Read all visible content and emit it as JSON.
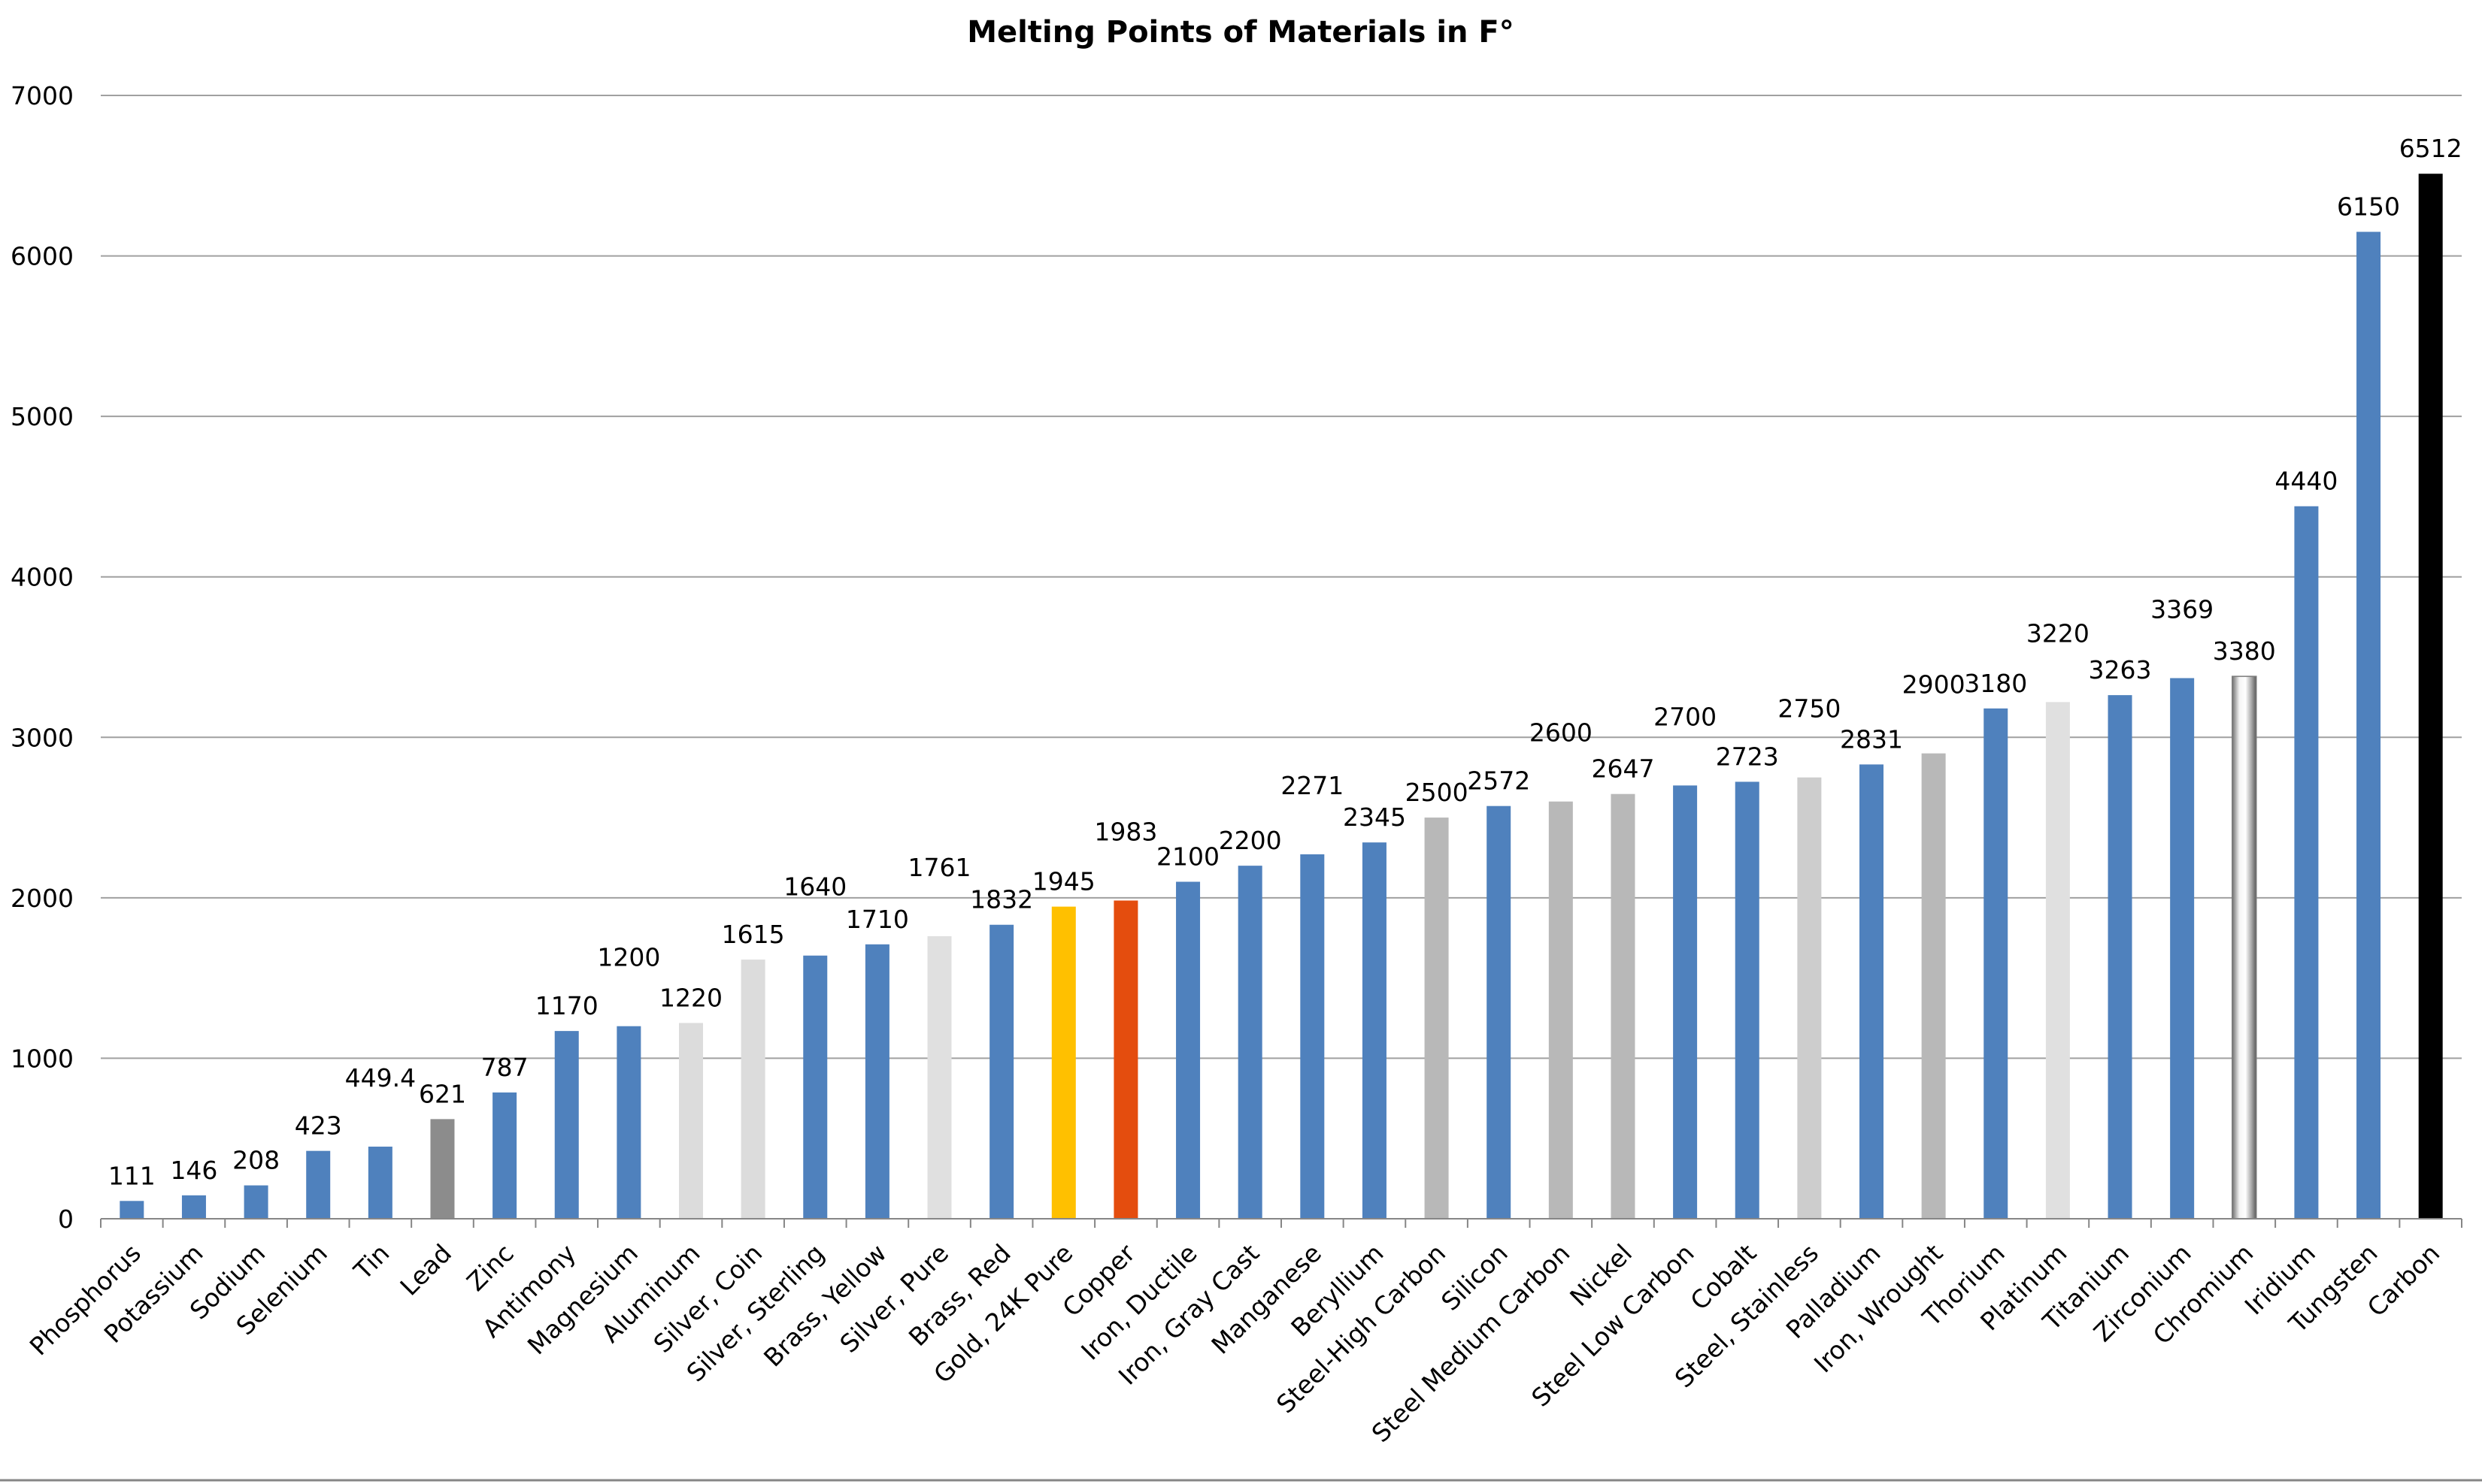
{
  "chart_data": {
    "type": "bar",
    "title": "Melting Points of Materials in F°",
    "xlabel": "",
    "ylabel": "",
    "ylim": [
      0,
      7000
    ],
    "yticks": [
      0,
      1000,
      2000,
      3000,
      4000,
      5000,
      6000,
      7000
    ],
    "grid": true,
    "legend": "none",
    "categories": [
      "Phosphorus",
      "Potassium",
      "Sodium",
      "Selenium",
      "Tin",
      "Lead",
      "Zinc",
      "Antimony",
      "Magnesium",
      "Aluminum",
      "Silver, Coin",
      "Silver, Sterling",
      "Brass, Yellow",
      "Silver, Pure",
      "Brass, Red",
      "Gold, 24K Pure",
      "Copper",
      "Iron, Ductile",
      "Iron, Gray Cast",
      "Manganese",
      "Beryllium",
      "Steel-High Carbon",
      "Silicon",
      "Steel Medium Carbon",
      "Nickel",
      "Steel Low Carbon",
      "Cobalt",
      "Steel, Stainless",
      "Palladium",
      "Iron, Wrought",
      "Thorium",
      "Platinum",
      "Titanium",
      "Zirconium",
      "Chromium",
      "Iridium",
      "Tungsten",
      "Carbon"
    ],
    "values": [
      111,
      146,
      208,
      423,
      449.4,
      621,
      787,
      1170,
      1200,
      1220,
      1615,
      1640,
      1710,
      1761,
      1832,
      1945,
      1983,
      2100,
      2200,
      2271,
      2345,
      2500,
      2572,
      2600,
      2647,
      2700,
      2723,
      2750,
      2831,
      2900,
      3180,
      3220,
      3263,
      3369,
      3380,
      4440,
      6150,
      6512
    ],
    "data_labels": [
      "111",
      "146",
      "208",
      "423",
      "449.4",
      "621",
      "787",
      "1170",
      "1200",
      "1220",
      "1615",
      "1640",
      "1710",
      "1761",
      "1832",
      "1945",
      "1983",
      "2100",
      "2200",
      "2271",
      "2345",
      "2500",
      "2572",
      "2600",
      "2647",
      "2700",
      "2723",
      "2750",
      "2831",
      "2900",
      "3180",
      "3220",
      "3263",
      "3369",
      "3380",
      "4440",
      "6150",
      "6512"
    ],
    "colors": [
      "#4f81bd",
      "#4f81bd",
      "#4f81bd",
      "#4f81bd",
      "#4f81bd",
      "#8c8c8c",
      "#4f81bd",
      "#4f81bd",
      "#4f81bd",
      "#dcdcdc",
      "#dcdcdc",
      "#4f81bd",
      "#4f81bd",
      "#e0e0e0",
      "#4f81bd",
      "#ffc000",
      "#e44d0e",
      "#4f81bd",
      "#4f81bd",
      "#4f81bd",
      "#4f81bd",
      "#b8b8b8",
      "#4f81bd",
      "#b8b8b8",
      "#b8b8b8",
      "#4f81bd",
      "#4f81bd",
      "#cdcdcd",
      "#4f81bd",
      "#b8b8b8",
      "#4f81bd",
      "#e0e0e0",
      "#4f81bd",
      "#4f81bd",
      "chrome",
      "#4f81bd",
      "#4f81bd",
      "#000000"
    ]
  }
}
